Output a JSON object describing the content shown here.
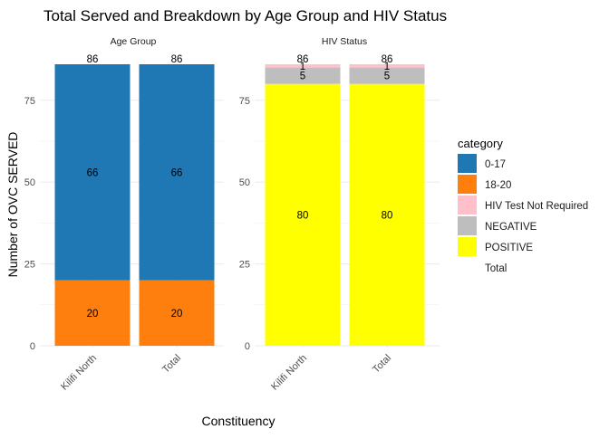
{
  "chart_data": {
    "type": "bar",
    "stacked": true,
    "title": "Total Served and Breakdown by Age Group and HIV Status",
    "xlabel": "Constituency",
    "ylabel": "Number of OVC SERVED",
    "ylim": [
      0,
      86
    ],
    "yticks": [
      0,
      25,
      50,
      75
    ],
    "grid": true,
    "legend": {
      "title": "category",
      "position": "right",
      "entries": [
        {
          "label": "0-17",
          "color": "#1f77b4"
        },
        {
          "label": "18-20",
          "color": "#ff7f0e"
        },
        {
          "label": "HIV Test Not Required",
          "color": "#ffc0cb"
        },
        {
          "label": "NEGATIVE",
          "color": "#bebebe"
        },
        {
          "label": "POSITIVE",
          "color": "#ffff00"
        },
        {
          "label": "Total",
          "color": ""
        }
      ]
    },
    "panels": [
      {
        "strip": "Age Group",
        "categories": [
          "Kilifi North",
          "Total"
        ],
        "total_label": "86",
        "totals": [
          86,
          86
        ],
        "series": [
          {
            "name": "18-20",
            "color": "#ff7f0e",
            "values": [
              20,
              20
            ]
          },
          {
            "name": "0-17",
            "color": "#1f77b4",
            "values": [
              66,
              66
            ]
          }
        ]
      },
      {
        "strip": "HIV Status",
        "categories": [
          "Kilifi North",
          "Total"
        ],
        "totals": [
          86,
          86
        ],
        "series": [
          {
            "name": "POSITIVE",
            "color": "#ffff00",
            "values": [
              80,
              80
            ]
          },
          {
            "name": "NEGATIVE",
            "color": "#bebebe",
            "values": [
              5,
              5
            ]
          },
          {
            "name": "HIV Test Not Required",
            "color": "#ffc0cb",
            "values": [
              1,
              1
            ]
          }
        ]
      }
    ]
  }
}
